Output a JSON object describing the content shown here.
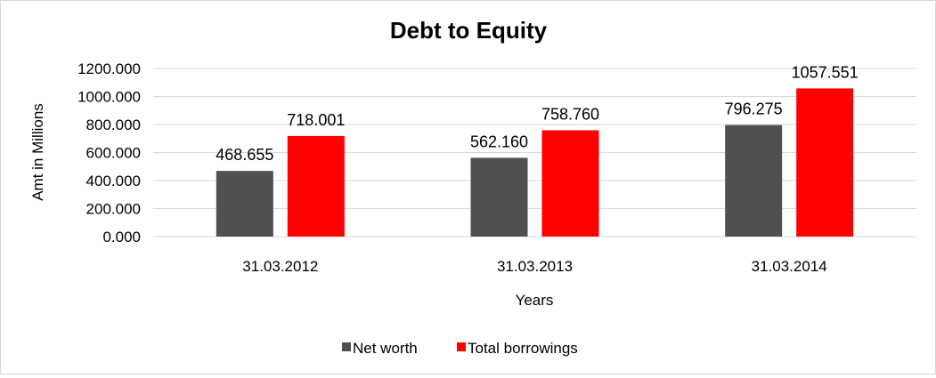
{
  "chart_data": {
    "type": "bar",
    "title": "Debt to Equity",
    "xlabel": "Years",
    "ylabel": "Amt in Millions",
    "categories": [
      "31.03.2012",
      "31.03.2013",
      "31.03.2014"
    ],
    "series": [
      {
        "name": "Net worth",
        "color": "#505050",
        "values": [
          468.655,
          562.16,
          796.275
        ],
        "labels": [
          "468.655",
          "562.160",
          "796.275"
        ]
      },
      {
        "name": "Total borrowings",
        "color": "#ff0000",
        "values": [
          718.001,
          758.76,
          1057.551
        ],
        "labels": [
          "718.001",
          "758.760",
          "1057.551"
        ]
      }
    ],
    "ylim": [
      0,
      1200
    ],
    "yticks": [
      0,
      200,
      400,
      600,
      800,
      1000,
      1200
    ],
    "ytick_labels": [
      "0.000",
      "200.000",
      "400.000",
      "600.000",
      "800.000",
      "1000.000",
      "1200.000"
    ],
    "grid": true,
    "legend_position": "bottom"
  }
}
